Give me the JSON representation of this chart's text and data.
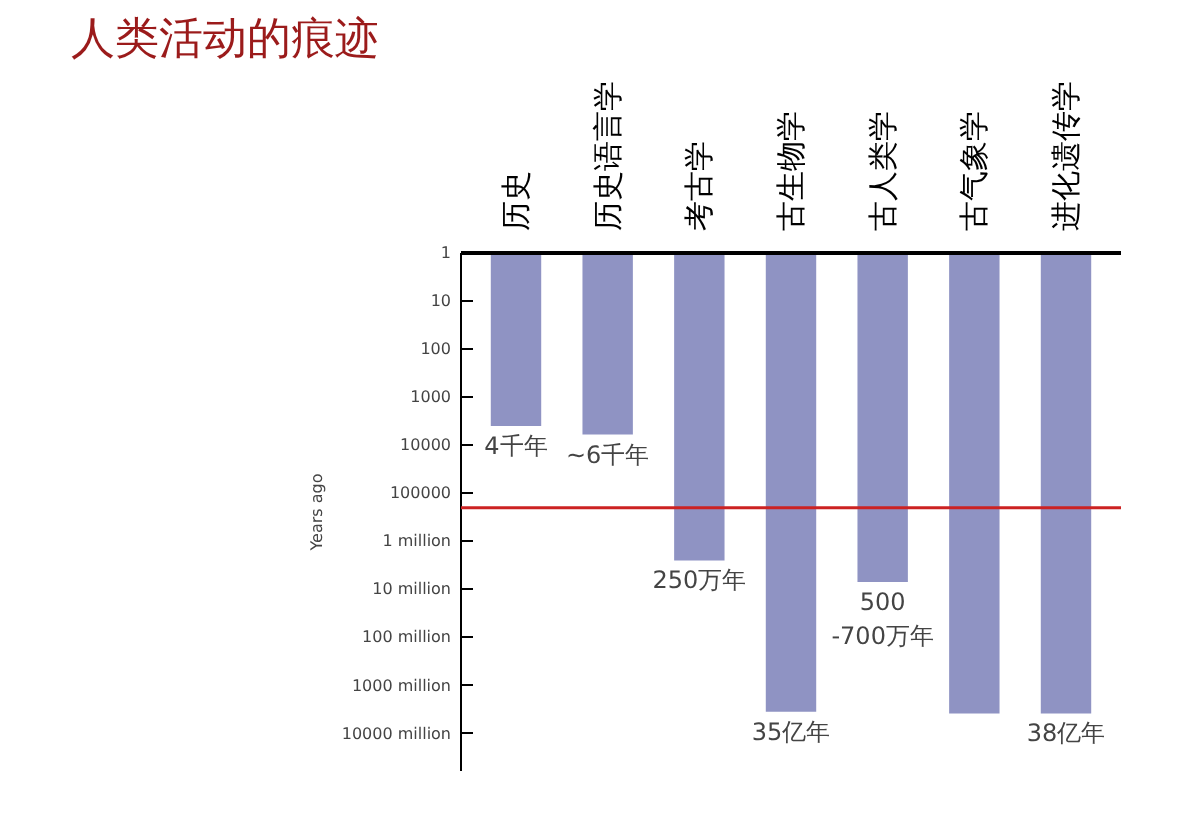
{
  "chart_data": {
    "type": "bar",
    "title": "人类活动的痕迹",
    "ylabel": "Years ago",
    "categories": [
      "历史",
      "历史语言学",
      "考古学",
      "古生物学",
      "古人类学",
      "古气象学",
      "进化遗传学"
    ],
    "values": [
      4000,
      6000,
      2500000,
      3500000000,
      7000000,
      3800000000,
      3800000000
    ],
    "color": "#7b80b8",
    "log": true,
    "ylim": [
      60000000000,
      1
    ],
    "yticks": [
      1,
      10,
      100,
      1000,
      10000,
      100000,
      {
        "value": 1000000,
        "label": "1 million"
      },
      {
        "value": 10000000,
        "label": "10 million"
      },
      {
        "value": 100000000,
        "label": "100 million"
      },
      {
        "value": 1000000000,
        "label": "1000 million"
      },
      {
        "value": 10000000000,
        "label": "10000 million"
      }
    ],
    "ref_lines": [
      {
        "axis": "y",
        "value": 200000,
        "color": "#cc2222"
      }
    ],
    "annotations": [
      {
        "text": "4千年",
        "x": "历史",
        "y": 4000
      },
      {
        "text": "~6千年",
        "x": "历史语言学",
        "y": 6000
      },
      {
        "text": "250万年",
        "x": "考古学",
        "y": 2500000
      },
      {
        "text": "500\n-700万年",
        "x": "古人类学",
        "y": 7000000
      },
      {
        "text": "35亿年",
        "x": "古生物学",
        "y": 3500000000
      },
      {
        "text": "38亿年",
        "x": "进化遗传学",
        "y": 3800000000
      }
    ],
    "grid": false
  }
}
